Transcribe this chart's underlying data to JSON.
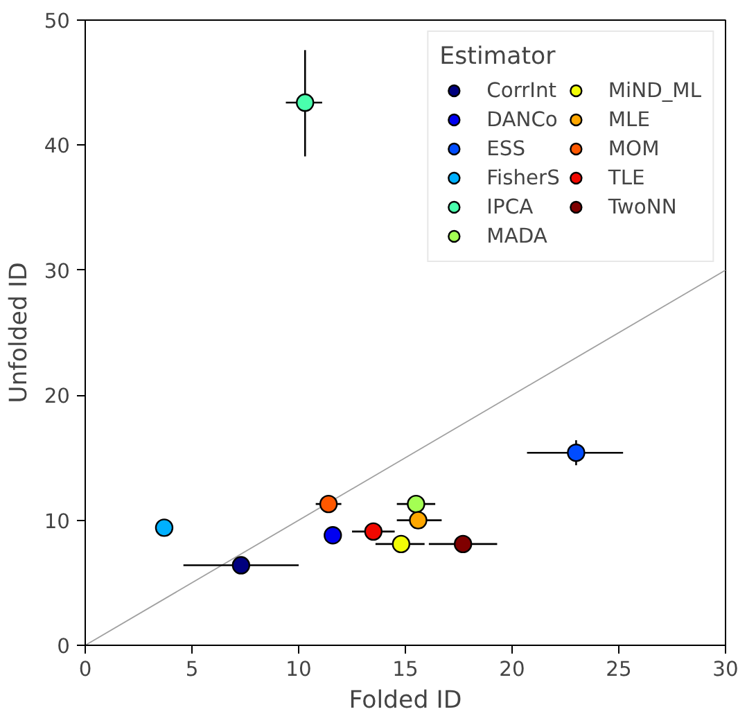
{
  "chart_data": {
    "type": "scatter",
    "xlabel": "Folded ID",
    "ylabel": "Unfolded ID",
    "legend_title": "Estimator",
    "legend": "top right",
    "grid": false,
    "marker": "circle",
    "xlim": [
      0,
      30
    ],
    "ylim": [
      0,
      50
    ],
    "xticks": [
      0,
      5,
      10,
      15,
      20,
      25,
      30
    ],
    "yticks": [
      0,
      10,
      20,
      30,
      40,
      50
    ],
    "series": [
      {
        "type": "line",
        "color": "#a0a0a0",
        "x": [
          0,
          30
        ],
        "values": [
          0,
          30
        ],
        "marker": "none"
      },
      {
        "name": "CorrInt",
        "color": "#00007f",
        "x": [
          7.3
        ],
        "values": [
          6.4
        ],
        "xerrors": [
          [
            4.6,
            10.0
          ]
        ]
      },
      {
        "name": "DANCo",
        "color": "#0000f1",
        "x": [
          11.6
        ],
        "values": [
          8.8
        ]
      },
      {
        "name": "ESS",
        "color": "#004cff",
        "x": [
          23.0
        ],
        "values": [
          15.4
        ],
        "xerrors": [
          [
            20.7,
            25.2
          ]
        ],
        "errors": [
          [
            14.4,
            16.4
          ]
        ]
      },
      {
        "name": "FisherS",
        "color": "#00b0ff",
        "x": [
          3.7
        ],
        "values": [
          9.4
        ]
      },
      {
        "name": "IPCA",
        "color": "#49ffad",
        "x": [
          10.3
        ],
        "values": [
          43.4
        ],
        "xerrors": [
          [
            9.4,
            11.1
          ]
        ],
        "errors": [
          [
            39.1,
            47.6
          ]
        ]
      },
      {
        "name": "MADA",
        "color": "#a4ff53",
        "x": [
          15.5
        ],
        "values": [
          11.3
        ],
        "xerrors": [
          [
            14.6,
            16.4
          ]
        ]
      },
      {
        "name": "MiND_ML",
        "color": "#f1fc06",
        "x": [
          14.8
        ],
        "values": [
          8.1
        ],
        "xerrors": [
          [
            13.6,
            15.9
          ]
        ]
      },
      {
        "name": "MLE",
        "color": "#ffa700",
        "x": [
          15.6
        ],
        "values": [
          10.0
        ],
        "xerrors": [
          [
            14.6,
            16.7
          ]
        ]
      },
      {
        "name": "MOM",
        "color": "#ff5800",
        "x": [
          11.4
        ],
        "values": [
          11.3
        ],
        "xerrors": [
          [
            10.8,
            12.0
          ]
        ]
      },
      {
        "name": "TLE",
        "color": "#f10800",
        "x": [
          13.5
        ],
        "values": [
          9.1
        ],
        "xerrors": [
          [
            12.5,
            14.5
          ]
        ]
      },
      {
        "name": "TwoNN",
        "color": "#7f0000",
        "x": [
          17.7
        ],
        "values": [
          8.1
        ],
        "xerrors": [
          [
            16.1,
            19.3
          ]
        ]
      }
    ]
  }
}
